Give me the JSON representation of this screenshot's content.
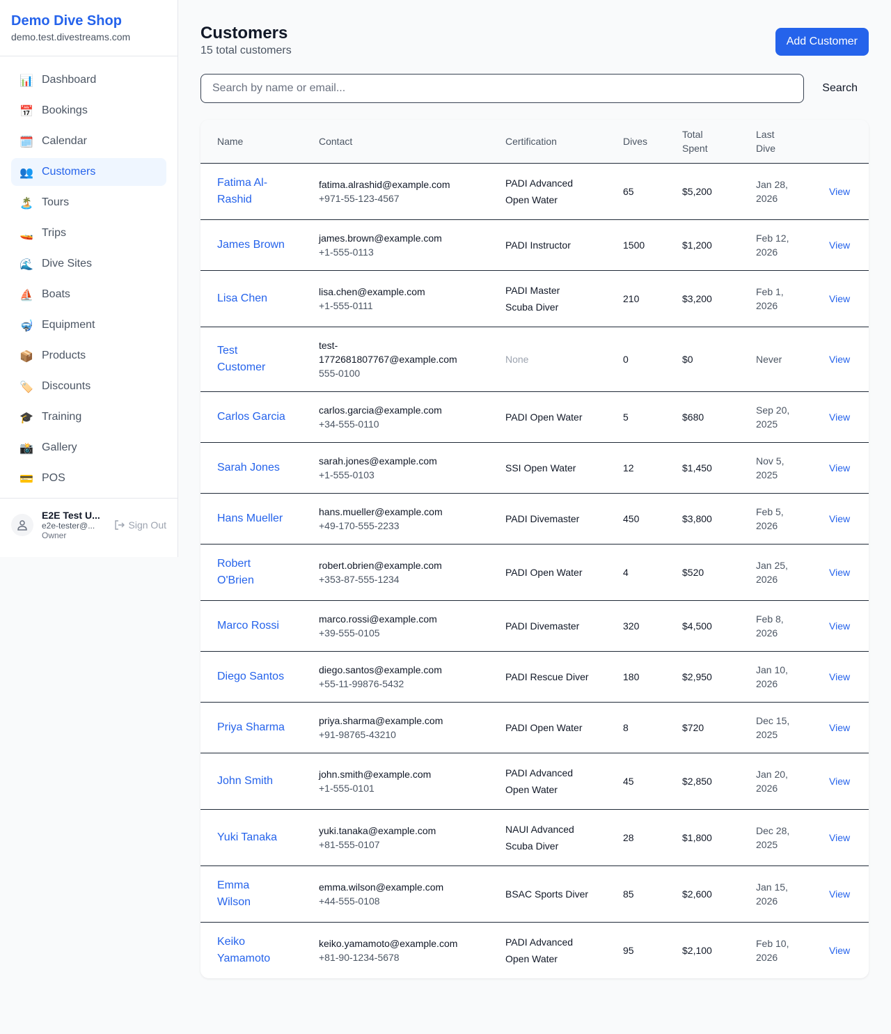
{
  "sidebar": {
    "brand": "Demo Dive Shop",
    "domain": "demo.test.divestreams.com",
    "items": [
      {
        "label": "Dashboard",
        "icon": "📊",
        "icon_name": "chart-icon"
      },
      {
        "label": "Bookings",
        "icon": "📅",
        "icon_name": "calendar-date-icon"
      },
      {
        "label": "Calendar",
        "icon": "🗓️",
        "icon_name": "calendar-icon"
      },
      {
        "label": "Customers",
        "icon": "👥",
        "icon_name": "users-icon",
        "active": true
      },
      {
        "label": "Tours",
        "icon": "🏝️",
        "icon_name": "island-icon"
      },
      {
        "label": "Trips",
        "icon": "🚤",
        "icon_name": "speedboat-icon"
      },
      {
        "label": "Dive Sites",
        "icon": "🌊",
        "icon_name": "wave-icon"
      },
      {
        "label": "Boats",
        "icon": "⛵",
        "icon_name": "sailboat-icon"
      },
      {
        "label": "Equipment",
        "icon": "🤿",
        "icon_name": "diving-mask-icon"
      },
      {
        "label": "Products",
        "icon": "📦",
        "icon_name": "package-icon"
      },
      {
        "label": "Discounts",
        "icon": "🏷️",
        "icon_name": "tag-icon"
      },
      {
        "label": "Training",
        "icon": "🎓",
        "icon_name": "graduation-cap-icon"
      },
      {
        "label": "Gallery",
        "icon": "📸",
        "icon_name": "camera-icon"
      },
      {
        "label": "POS",
        "icon": "💳",
        "icon_name": "credit-card-icon"
      }
    ],
    "user": {
      "name": "E2E Test U...",
      "email": "e2e-tester@...",
      "role": "Owner",
      "sign_out": "Sign Out"
    }
  },
  "header": {
    "title": "Customers",
    "subtitle": "15 total customers",
    "add_button": "Add Customer"
  },
  "search": {
    "placeholder": "Search by name or email...",
    "value": "",
    "button": "Search"
  },
  "table": {
    "columns": [
      "Name",
      "Contact",
      "Certification",
      "Dives",
      "Total Spent",
      "Last Dive",
      ""
    ],
    "rows": [
      {
        "name": "Fatima Al-Rashid",
        "email": "fatima.alrashid@example.com",
        "phone": "+971-55-123-4567",
        "cert": "PADI Advanced Open Water",
        "dives": "65",
        "spent": "$5,200",
        "last": "Jan 28, 2026",
        "action": "View"
      },
      {
        "name": "James Brown",
        "email": "james.brown@example.com",
        "phone": "+1-555-0113",
        "cert": "PADI Instructor",
        "dives": "1500",
        "spent": "$1,200",
        "last": "Feb 12, 2026",
        "action": "View"
      },
      {
        "name": "Lisa Chen",
        "email": "lisa.chen@example.com",
        "phone": "+1-555-0111",
        "cert": "PADI Master Scuba Diver",
        "dives": "210",
        "spent": "$3,200",
        "last": "Feb 1, 2026",
        "action": "View"
      },
      {
        "name": "Test Customer",
        "email": "test-1772681807767@example.com",
        "phone": "555-0100",
        "cert": "None",
        "dives": "0",
        "spent": "$0",
        "last": "Never",
        "action": "View"
      },
      {
        "name": "Carlos Garcia",
        "email": "carlos.garcia@example.com",
        "phone": "+34-555-0110",
        "cert": "PADI Open Water",
        "dives": "5",
        "spent": "$680",
        "last": "Sep 20, 2025",
        "action": "View"
      },
      {
        "name": "Sarah Jones",
        "email": "sarah.jones@example.com",
        "phone": "+1-555-0103",
        "cert": "SSI Open Water",
        "dives": "12",
        "spent": "$1,450",
        "last": "Nov 5, 2025",
        "action": "View"
      },
      {
        "name": "Hans Mueller",
        "email": "hans.mueller@example.com",
        "phone": "+49-170-555-2233",
        "cert": "PADI Divemaster",
        "dives": "450",
        "spent": "$3,800",
        "last": "Feb 5, 2026",
        "action": "View"
      },
      {
        "name": "Robert O'Brien",
        "email": "robert.obrien@example.com",
        "phone": "+353-87-555-1234",
        "cert": "PADI Open Water",
        "dives": "4",
        "spent": "$520",
        "last": "Jan 25, 2026",
        "action": "View"
      },
      {
        "name": "Marco Rossi",
        "email": "marco.rossi@example.com",
        "phone": "+39-555-0105",
        "cert": "PADI Divemaster",
        "dives": "320",
        "spent": "$4,500",
        "last": "Feb 8, 2026",
        "action": "View"
      },
      {
        "name": "Diego Santos",
        "email": "diego.santos@example.com",
        "phone": "+55-11-99876-5432",
        "cert": "PADI Rescue Diver",
        "dives": "180",
        "spent": "$2,950",
        "last": "Jan 10, 2026",
        "action": "View"
      },
      {
        "name": "Priya Sharma",
        "email": "priya.sharma@example.com",
        "phone": "+91-98765-43210",
        "cert": "PADI Open Water",
        "dives": "8",
        "spent": "$720",
        "last": "Dec 15, 2025",
        "action": "View"
      },
      {
        "name": "John Smith",
        "email": "john.smith@example.com",
        "phone": "+1-555-0101",
        "cert": "PADI Advanced Open Water",
        "dives": "45",
        "spent": "$2,850",
        "last": "Jan 20, 2026",
        "action": "View"
      },
      {
        "name": "Yuki Tanaka",
        "email": "yuki.tanaka@example.com",
        "phone": "+81-555-0107",
        "cert": "NAUI Advanced Scuba Diver",
        "dives": "28",
        "spent": "$1,800",
        "last": "Dec 28, 2025",
        "action": "View"
      },
      {
        "name": "Emma Wilson",
        "email": "emma.wilson@example.com",
        "phone": "+44-555-0108",
        "cert": "BSAC Sports Diver",
        "dives": "85",
        "spent": "$2,600",
        "last": "Jan 15, 2026",
        "action": "View"
      },
      {
        "name": "Keiko Yamamoto",
        "email": "keiko.yamamoto@example.com",
        "phone": "+81-90-1234-5678",
        "cert": "PADI Advanced Open Water",
        "dives": "95",
        "spent": "$2,100",
        "last": "Feb 10, 2026",
        "action": "View"
      }
    ]
  },
  "colors": {
    "accent": "#2563eb",
    "active_bg": "#eff6ff"
  }
}
